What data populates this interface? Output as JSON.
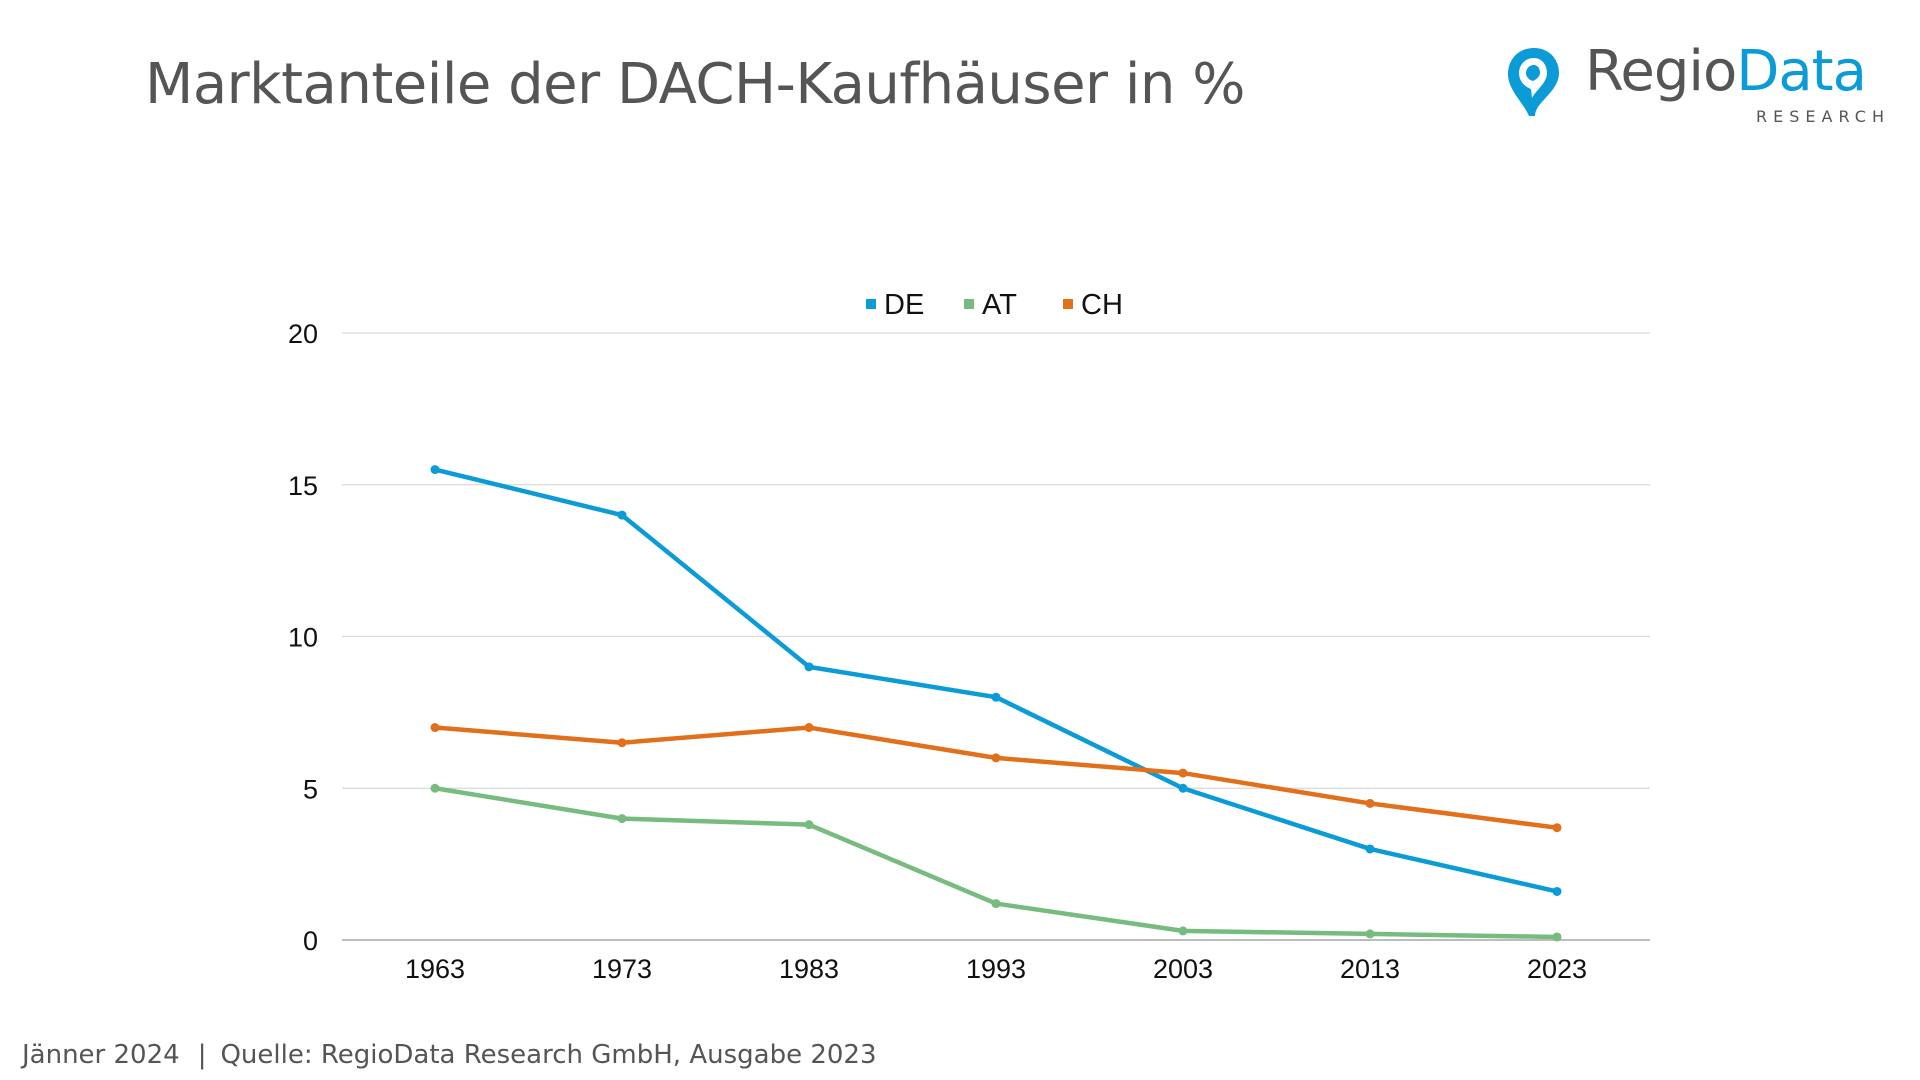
{
  "header": {
    "title": "Marktanteile der DACH-Kaufhäuser in %"
  },
  "logo": {
    "name_part1": "Regio",
    "name_part2": "Data",
    "subtitle": "RESEARCH",
    "icon": "location-pin-icon",
    "colors": {
      "gray": "#555555",
      "blue": "#0b9bd6"
    }
  },
  "footer": {
    "date": "Jänner 2024",
    "separator": "|",
    "source": "Quelle: RegioData Research GmbH, Ausgabe 2023"
  },
  "chart_data": {
    "type": "line",
    "title": "",
    "xlabel": "",
    "ylabel": "",
    "x": [
      "1963",
      "1973",
      "1983",
      "1993",
      "2003",
      "2013",
      "2023"
    ],
    "ylim": [
      0,
      20
    ],
    "yticks": [
      "0",
      "5",
      "10",
      "15",
      "20"
    ],
    "grid": true,
    "legend_position": "top-center",
    "series": [
      {
        "name": "DE",
        "color": "#0b9bd6",
        "values": [
          15.5,
          14,
          9,
          8,
          5,
          3,
          1.6
        ]
      },
      {
        "name": "AT",
        "color": "#77bb7f",
        "values": [
          5,
          4,
          3.8,
          1.2,
          0.3,
          0.2,
          0.1
        ]
      },
      {
        "name": "CH",
        "color": "#e2701b",
        "values": [
          7,
          6.5,
          7,
          6,
          5.5,
          4.5,
          3.7
        ]
      }
    ]
  }
}
